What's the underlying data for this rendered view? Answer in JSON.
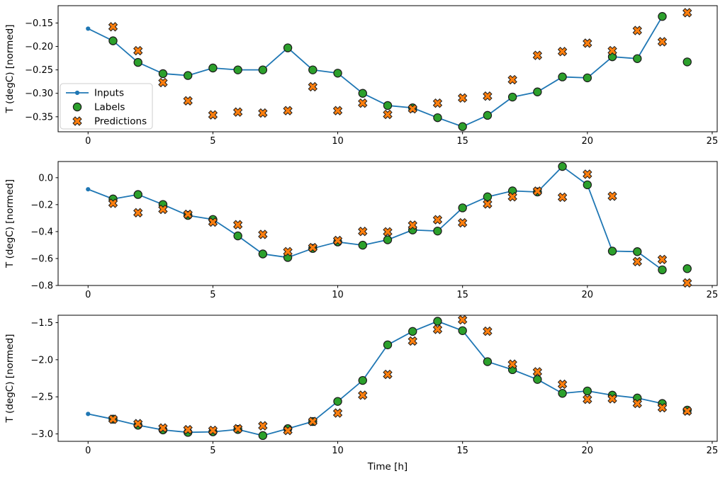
{
  "figure": {
    "background": "#ffffff",
    "xlabel": "Time [h]",
    "ylabel": "T (degC) [normed]"
  },
  "colors": {
    "inputs": "#1f77b4",
    "labels": "#2ca02c",
    "predictions": "#ff7f0e",
    "marker_edge": "#1a1a1a",
    "axis": "#000000",
    "legend_border": "#cccccc",
    "legend_bg": "#ffffff"
  },
  "legend": {
    "items": [
      {
        "label": "Inputs",
        "style": "line-dot"
      },
      {
        "label": "Labels",
        "style": "circle"
      },
      {
        "label": "Predictions",
        "style": "x"
      }
    ]
  },
  "chart_data": [
    {
      "type": "line",
      "panel": 1,
      "ylabel": "T (degC) [normed]",
      "xlim": [
        -1.2,
        25.2
      ],
      "ylim": [
        -0.382,
        -0.113
      ],
      "xticks": {
        "values": [
          0,
          5,
          10,
          15,
          20,
          25
        ],
        "labels": [
          "0",
          "5",
          "10",
          "15",
          "20",
          "25"
        ]
      },
      "yticks": {
        "values": [
          -0.15,
          -0.2,
          -0.25,
          -0.3,
          -0.35
        ],
        "labels": [
          "−0.15",
          "−0.20",
          "−0.25",
          "−0.30",
          "−0.35"
        ]
      },
      "grid": false,
      "legend_position": "upper-left-inside",
      "series": [
        {
          "name": "Inputs",
          "style": "line-dot",
          "x": [
            0,
            1,
            2,
            3,
            4,
            5,
            6,
            7,
            8,
            9,
            10,
            11,
            12,
            13,
            14,
            15,
            16,
            17,
            18,
            19,
            20,
            21,
            22,
            23
          ],
          "y": [
            -0.162,
            -0.188,
            -0.234,
            -0.258,
            -0.262,
            -0.246,
            -0.25,
            -0.25,
            -0.203,
            -0.25,
            -0.257,
            -0.3,
            -0.326,
            -0.331,
            -0.352,
            -0.371,
            -0.347,
            -0.308,
            -0.297,
            -0.265,
            -0.267,
            -0.222,
            -0.226,
            -0.136
          ]
        },
        {
          "name": "Labels",
          "style": "circle",
          "x": [
            1,
            2,
            3,
            4,
            5,
            6,
            7,
            8,
            9,
            10,
            11,
            12,
            13,
            14,
            15,
            16,
            17,
            18,
            19,
            20,
            21,
            22,
            23,
            24
          ],
          "y": [
            -0.188,
            -0.234,
            -0.258,
            -0.262,
            -0.246,
            -0.25,
            -0.25,
            -0.203,
            -0.25,
            -0.257,
            -0.3,
            -0.326,
            -0.331,
            -0.352,
            -0.371,
            -0.347,
            -0.308,
            -0.297,
            -0.265,
            -0.267,
            -0.222,
            -0.226,
            -0.136,
            -0.233
          ]
        },
        {
          "name": "Predictions",
          "style": "x",
          "x": [
            1,
            2,
            3,
            4,
            5,
            6,
            7,
            8,
            9,
            10,
            11,
            12,
            13,
            14,
            15,
            16,
            17,
            18,
            19,
            20,
            21,
            22,
            23,
            24
          ],
          "y": [
            -0.158,
            -0.209,
            -0.277,
            -0.316,
            -0.346,
            -0.34,
            -0.342,
            -0.337,
            -0.286,
            -0.337,
            -0.321,
            -0.345,
            -0.333,
            -0.321,
            -0.31,
            -0.306,
            -0.271,
            -0.219,
            -0.211,
            -0.193,
            -0.209,
            -0.166,
            -0.19,
            -0.128
          ]
        }
      ]
    },
    {
      "type": "line",
      "panel": 2,
      "ylabel": "T (degC) [normed]",
      "xlim": [
        -1.2,
        25.2
      ],
      "ylim": [
        -0.8,
        0.12
      ],
      "xticks": {
        "values": [
          0,
          5,
          10,
          15,
          20,
          25
        ],
        "labels": [
          "0",
          "5",
          "10",
          "15",
          "20",
          "25"
        ]
      },
      "yticks": {
        "values": [
          0.0,
          -0.2,
          -0.4,
          -0.6,
          -0.8
        ],
        "labels": [
          "0.0",
          "−0.2",
          "−0.4",
          "−0.6",
          "−0.8"
        ]
      },
      "grid": false,
      "series": [
        {
          "name": "Inputs",
          "style": "line-dot",
          "x": [
            0,
            1,
            2,
            3,
            4,
            5,
            6,
            7,
            8,
            9,
            10,
            11,
            12,
            13,
            14,
            15,
            16,
            17,
            18,
            19,
            20,
            21,
            22,
            23
          ],
          "y": [
            -0.086,
            -0.158,
            -0.125,
            -0.199,
            -0.28,
            -0.31,
            -0.432,
            -0.566,
            -0.592,
            -0.525,
            -0.477,
            -0.501,
            -0.461,
            -0.388,
            -0.396,
            -0.224,
            -0.142,
            -0.098,
            -0.106,
            0.083,
            -0.053,
            -0.545,
            -0.549,
            -0.684
          ]
        },
        {
          "name": "Labels",
          "style": "circle",
          "x": [
            1,
            2,
            3,
            4,
            5,
            6,
            7,
            8,
            9,
            10,
            11,
            12,
            13,
            14,
            15,
            16,
            17,
            18,
            19,
            20,
            21,
            22,
            23,
            24
          ],
          "y": [
            -0.158,
            -0.125,
            -0.199,
            -0.28,
            -0.31,
            -0.432,
            -0.566,
            -0.592,
            -0.525,
            -0.477,
            -0.501,
            -0.461,
            -0.388,
            -0.396,
            -0.224,
            -0.142,
            -0.098,
            -0.106,
            0.083,
            -0.053,
            -0.545,
            -0.549,
            -0.684,
            -0.675
          ]
        },
        {
          "name": "Predictions",
          "style": "x",
          "x": [
            1,
            2,
            3,
            4,
            5,
            6,
            7,
            8,
            9,
            10,
            11,
            12,
            13,
            14,
            15,
            16,
            17,
            18,
            19,
            20,
            21,
            22,
            23,
            24
          ],
          "y": [
            -0.19,
            -0.26,
            -0.235,
            -0.272,
            -0.33,
            -0.349,
            -0.421,
            -0.549,
            -0.519,
            -0.466,
            -0.399,
            -0.402,
            -0.352,
            -0.312,
            -0.335,
            -0.195,
            -0.142,
            -0.1,
            -0.145,
            0.026,
            -0.137,
            -0.623,
            -0.607,
            -0.781
          ]
        }
      ]
    },
    {
      "type": "line",
      "panel": 3,
      "ylabel": "T (degC) [normed]",
      "xlabel": "Time [h]",
      "xlim": [
        -1.2,
        25.2
      ],
      "ylim": [
        -3.1,
        -1.4
      ],
      "xticks": {
        "values": [
          0,
          5,
          10,
          15,
          20,
          25
        ],
        "labels": [
          "0",
          "5",
          "10",
          "15",
          "20",
          "25"
        ]
      },
      "yticks": {
        "values": [
          -1.5,
          -2.0,
          -2.5,
          -3.0
        ],
        "labels": [
          "−1.5",
          "−2.0",
          "−2.5",
          "−3.0"
        ]
      },
      "grid": false,
      "series": [
        {
          "name": "Inputs",
          "style": "line-dot",
          "x": [
            0,
            1,
            2,
            3,
            4,
            5,
            6,
            7,
            8,
            9,
            10,
            11,
            12,
            13,
            14,
            15,
            16,
            17,
            18,
            19,
            20,
            21,
            22,
            23
          ],
          "y": [
            -2.731,
            -2.801,
            -2.883,
            -2.946,
            -2.979,
            -2.972,
            -2.94,
            -3.022,
            -2.929,
            -2.833,
            -2.562,
            -2.279,
            -1.799,
            -1.618,
            -1.481,
            -1.608,
            -2.026,
            -2.134,
            -2.266,
            -2.453,
            -2.421,
            -2.478,
            -2.516,
            -2.59
          ]
        },
        {
          "name": "Labels",
          "style": "circle",
          "x": [
            1,
            2,
            3,
            4,
            5,
            6,
            7,
            8,
            9,
            10,
            11,
            12,
            13,
            14,
            15,
            16,
            17,
            18,
            19,
            20,
            21,
            22,
            23,
            24
          ],
          "y": [
            -2.801,
            -2.883,
            -2.946,
            -2.979,
            -2.972,
            -2.94,
            -3.022,
            -2.929,
            -2.833,
            -2.562,
            -2.279,
            -1.799,
            -1.618,
            -1.481,
            -1.608,
            -2.026,
            -2.134,
            -2.266,
            -2.453,
            -2.421,
            -2.478,
            -2.516,
            -2.59,
            -2.679
          ]
        },
        {
          "name": "Predictions",
          "style": "x",
          "x": [
            1,
            2,
            3,
            4,
            5,
            6,
            7,
            8,
            9,
            10,
            11,
            12,
            13,
            14,
            15,
            16,
            17,
            18,
            19,
            20,
            21,
            22,
            23,
            24
          ],
          "y": [
            -2.802,
            -2.862,
            -2.92,
            -2.943,
            -2.952,
            -2.93,
            -2.891,
            -2.954,
            -2.832,
            -2.719,
            -2.478,
            -2.198,
            -1.748,
            -1.59,
            -1.462,
            -1.616,
            -2.06,
            -2.163,
            -2.331,
            -2.533,
            -2.526,
            -2.59,
            -2.647,
            -2.692
          ]
        }
      ]
    }
  ]
}
